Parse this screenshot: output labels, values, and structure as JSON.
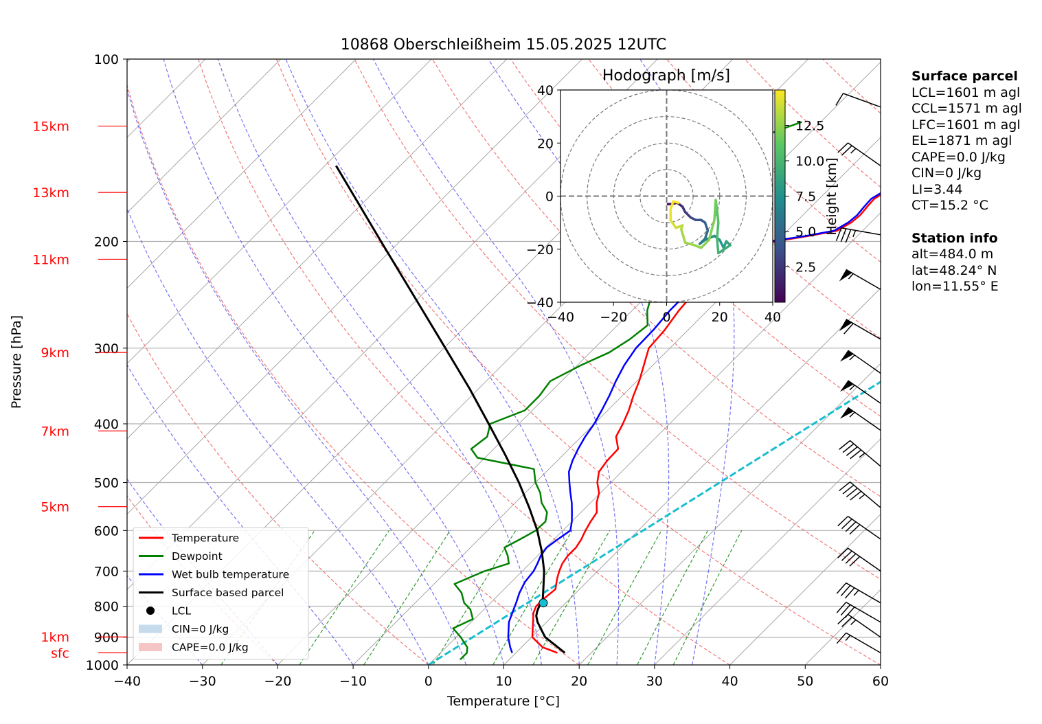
{
  "chart_data": {
    "type": "line",
    "title": "10868 Oberschleißheim 15.05.2025 12UTC",
    "xlabel": "Temperature [°C]",
    "ylabel": "Pressure [hPa]",
    "xlim": [
      -40,
      60
    ],
    "ylim": [
      1000,
      100
    ],
    "y_scale": "log",
    "x_ticks": [
      "−40",
      "−30",
      "−20",
      "−10",
      "0",
      "10",
      "20",
      "30",
      "40",
      "50",
      "60"
    ],
    "y_ticks": [
      "100",
      "200",
      "300",
      "400",
      "500",
      "600",
      "700",
      "800",
      "900",
      "1000"
    ],
    "height_labels": [
      {
        "label": "15km",
        "p": 129
      },
      {
        "label": "13km",
        "p": 166
      },
      {
        "label": "11km",
        "p": 214
      },
      {
        "label": "9km",
        "p": 305
      },
      {
        "label": "7km",
        "p": 411
      },
      {
        "label": "5km",
        "p": 548
      },
      {
        "label": "1km",
        "p": 899
      },
      {
        "label": "sfc",
        "p": 955
      }
    ],
    "legend_position": "lower-left",
    "legend": [
      {
        "label": "Temperature",
        "color": "#ff0000",
        "kind": "line"
      },
      {
        "label": "Dewpoint",
        "color": "#008000",
        "kind": "line"
      },
      {
        "label": "Wet bulb temperature",
        "color": "#0000ff",
        "kind": "line"
      },
      {
        "label": "Surface based parcel",
        "color": "#000000",
        "kind": "line"
      },
      {
        "label": "LCL",
        "color": "#000000",
        "kind": "dot"
      },
      {
        "label": "CIN=0 J/kg",
        "color": "#c6dbec",
        "kind": "patch"
      },
      {
        "label": "CAPE=0.0 J/kg",
        "color": "#f6c6c6",
        "kind": "patch"
      }
    ],
    "series": [
      {
        "name": "Temperature",
        "color": "#ff0000",
        "points": [
          [
            955,
            15.5
          ],
          [
            935,
            12.8
          ],
          [
            900,
            10.1
          ],
          [
            850,
            8.2
          ],
          [
            820,
            7.0
          ],
          [
            800,
            6.5
          ],
          [
            780,
            6.5
          ],
          [
            750,
            6.8
          ],
          [
            720,
            5.6
          ],
          [
            700,
            4.9
          ],
          [
            680,
            4.3
          ],
          [
            660,
            4.0
          ],
          [
            640,
            4.0
          ],
          [
            620,
            3.6
          ],
          [
            600,
            3.0
          ],
          [
            580,
            2.5
          ],
          [
            560,
            2.1
          ],
          [
            540,
            0.8
          ],
          [
            520,
            -0.2
          ],
          [
            500,
            -1.8
          ],
          [
            480,
            -3.0
          ],
          [
            460,
            -3.4
          ],
          [
            440,
            -3.5
          ],
          [
            420,
            -5.4
          ],
          [
            400,
            -6.2
          ],
          [
            380,
            -7.2
          ],
          [
            360,
            -8.5
          ],
          [
            340,
            -9.7
          ],
          [
            320,
            -11.2
          ],
          [
            300,
            -12.8
          ],
          [
            280,
            -13.1
          ],
          [
            260,
            -13.8
          ],
          [
            240,
            -14.2
          ],
          [
            225,
            -13.0
          ],
          [
            213,
            -12.0
          ],
          [
            205,
            -11.7
          ],
          [
            200,
            -10.2
          ],
          [
            196,
            -6.6
          ],
          [
            192,
            -3.4
          ],
          [
            186,
            -2.6
          ],
          [
            181,
            -2.4
          ],
          [
            175,
            -2.6
          ],
          [
            170,
            -2.7
          ],
          [
            165,
            -2.0
          ],
          [
            160,
            0.6
          ],
          [
            152,
            1.2
          ],
          [
            142,
            2.1
          ],
          [
            135,
            3.6
          ],
          [
            128,
            4.0
          ]
        ]
      },
      {
        "name": "Dewpoint",
        "color": "#008000",
        "points": [
          [
            980,
            3.5
          ],
          [
            955,
            3.5
          ],
          [
            935,
            2.8
          ],
          [
            900,
            0.6
          ],
          [
            870,
            -1.6
          ],
          [
            840,
            -0.2
          ],
          [
            810,
            -1.8
          ],
          [
            790,
            -3.5
          ],
          [
            760,
            -5.2
          ],
          [
            735,
            -7.3
          ],
          [
            700,
            -5.0
          ],
          [
            680,
            -2.8
          ],
          [
            660,
            -4.0
          ],
          [
            640,
            -5.5
          ],
          [
            620,
            -4.5
          ],
          [
            600,
            -3.6
          ],
          [
            580,
            -3.5
          ],
          [
            560,
            -4.5
          ],
          [
            540,
            -6.5
          ],
          [
            520,
            -8.0
          ],
          [
            500,
            -10.0
          ],
          [
            475,
            -12.0
          ],
          [
            455,
            -21.0
          ],
          [
            440,
            -23.0
          ],
          [
            420,
            -22.5
          ],
          [
            400,
            -23.8
          ],
          [
            380,
            -21.0
          ],
          [
            360,
            -21.0
          ],
          [
            340,
            -21.5
          ],
          [
            320,
            -19.5
          ],
          [
            305,
            -17.5
          ],
          [
            290,
            -16.5
          ],
          [
            275,
            -16.0
          ],
          [
            260,
            -18.0
          ],
          [
            245,
            -19.5
          ],
          [
            230,
            -21.5
          ],
          [
            215,
            -25.5
          ],
          [
            205,
            -26.5
          ],
          [
            198,
            -29.0
          ],
          [
            190,
            -31.5
          ],
          [
            180,
            -30.0
          ],
          [
            165,
            -29.0
          ],
          [
            150,
            -29.5
          ],
          [
            140,
            -28.0
          ],
          [
            130,
            -24.0
          ],
          [
            127,
            -22.5
          ]
        ]
      },
      {
        "name": "Wet bulb temperature",
        "color": "#0000ff",
        "points": [
          [
            955,
            9.5
          ],
          [
            935,
            8.5
          ],
          [
            900,
            6.9
          ],
          [
            850,
            5.0
          ],
          [
            820,
            4.2
          ],
          [
            790,
            3.4
          ],
          [
            760,
            2.5
          ],
          [
            730,
            1.8
          ],
          [
            700,
            1.5
          ],
          [
            680,
            1.0
          ],
          [
            660,
            0.4
          ],
          [
            640,
            0.1
          ],
          [
            620,
            0.5
          ],
          [
            600,
            1.0
          ],
          [
            580,
            0.0
          ],
          [
            560,
            -1.2
          ],
          [
            540,
            -2.5
          ],
          [
            520,
            -4.0
          ],
          [
            500,
            -5.5
          ],
          [
            480,
            -7.0
          ],
          [
            460,
            -8.0
          ],
          [
            440,
            -8.8
          ],
          [
            420,
            -9.5
          ],
          [
            400,
            -10.0
          ],
          [
            380,
            -10.8
          ],
          [
            360,
            -11.7
          ],
          [
            340,
            -12.8
          ],
          [
            320,
            -13.8
          ],
          [
            300,
            -14.5
          ],
          [
            280,
            -14.6
          ],
          [
            260,
            -15.0
          ],
          [
            240,
            -15.0
          ],
          [
            225,
            -13.6
          ],
          [
            213,
            -12.5
          ],
          [
            205,
            -12.3
          ],
          [
            200,
            -11.0
          ],
          [
            196,
            -7.0
          ],
          [
            192,
            -3.8
          ],
          [
            186,
            -3.0
          ],
          [
            181,
            -2.8
          ],
          [
            175,
            -3.0
          ],
          [
            170,
            -3.1
          ],
          [
            165,
            -2.4
          ],
          [
            160,
            0.3
          ],
          [
            152,
            0.8
          ],
          [
            142,
            1.7
          ],
          [
            135,
            3.1
          ],
          [
            128,
            3.6
          ]
        ]
      },
      {
        "name": "Surface based parcel",
        "color": "#000000",
        "points": [
          [
            955,
            16.5
          ],
          [
            900,
            11.8
          ],
          [
            850,
            8.8
          ],
          [
            830,
            7.8
          ],
          [
            815,
            7.3
          ],
          [
            800,
            6.9
          ],
          [
            785,
            6.7
          ],
          [
            750,
            5.2
          ],
          [
            700,
            2.9
          ],
          [
            650,
            0.0
          ],
          [
            600,
            -3.4
          ],
          [
            550,
            -7.5
          ],
          [
            500,
            -12.2
          ],
          [
            450,
            -17.7
          ],
          [
            400,
            -24.0
          ],
          [
            350,
            -31.2
          ],
          [
            300,
            -39.8
          ],
          [
            250,
            -50.0
          ],
          [
            200,
            -62.5
          ],
          [
            150,
            -78.5
          ]
        ]
      }
    ],
    "lcl": {
      "p": 790,
      "t": 7.0
    },
    "dry_adiabats_theta_k": [
      213.15,
      233.15,
      253.15,
      273.15,
      293.15,
      313.15,
      333.15,
      353.15,
      373.15,
      393.15,
      413.15,
      433.15,
      453.15,
      473.15,
      493.15,
      513.15
    ],
    "moist_adiabats_c": [
      -30,
      -20,
      -10,
      0,
      5,
      10,
      15,
      20,
      25,
      30,
      35
    ],
    "mixing_ratio_lines_gkg": [
      0.4,
      1,
      2,
      4,
      7,
      10,
      16,
      24,
      32
    ],
    "isotherm_step_c": 10,
    "wind_barbs": [
      {
        "p": 955,
        "speed_kt": 15,
        "dir_deg": 300
      },
      {
        "p": 900,
        "speed_kt": 25,
        "dir_deg": 305
      },
      {
        "p": 850,
        "speed_kt": 30,
        "dir_deg": 300
      },
      {
        "p": 790,
        "speed_kt": 35,
        "dir_deg": 300
      },
      {
        "p": 700,
        "speed_kt": 40,
        "dir_deg": 305
      },
      {
        "p": 620,
        "speed_kt": 40,
        "dir_deg": 305
      },
      {
        "p": 550,
        "speed_kt": 45,
        "dir_deg": 310
      },
      {
        "p": 470,
        "speed_kt": 45,
        "dir_deg": 310
      },
      {
        "p": 410,
        "speed_kt": 55,
        "dir_deg": 305
      },
      {
        "p": 370,
        "speed_kt": 55,
        "dir_deg": 305
      },
      {
        "p": 330,
        "speed_kt": 55,
        "dir_deg": 305
      },
      {
        "p": 290,
        "speed_kt": 60,
        "dir_deg": 300
      },
      {
        "p": 240,
        "speed_kt": 55,
        "dir_deg": 300
      },
      {
        "p": 195,
        "speed_kt": 35,
        "dir_deg": 280
      },
      {
        "p": 150,
        "speed_kt": 25,
        "dir_deg": 305
      },
      {
        "p": 120,
        "speed_kt": 10,
        "dir_deg": 290
      }
    ],
    "hodograph": {
      "title": "Hodograph [m/s]",
      "xlim": [
        -40,
        40
      ],
      "ylim": [
        -40,
        40
      ],
      "x_ticks": [
        "−40",
        "−20",
        "0",
        "20",
        "40"
      ],
      "y_ticks": [
        "−40",
        "−20",
        "0",
        "20",
        "40"
      ],
      "ring_radii": [
        10,
        20,
        30,
        40
      ],
      "colorbar_label": "Height [km]",
      "colorbar_ticks": [
        "2.5",
        "5.0",
        "7.5",
        "10.0",
        "12.5"
      ],
      "colorbar_range_km": [
        0,
        15
      ],
      "points": [
        [
          0.5,
          -3.0,
          0.5
        ],
        [
          2.0,
          -3.0,
          1.0
        ],
        [
          4.0,
          -2.5,
          1.5
        ],
        [
          6.0,
          -4.0,
          2.0
        ],
        [
          7.0,
          -6.0,
          2.5
        ],
        [
          9.0,
          -8.0,
          3.0
        ],
        [
          11.0,
          -9.0,
          3.5
        ],
        [
          13.0,
          -9.0,
          4.0
        ],
        [
          14.5,
          -10.0,
          4.5
        ],
        [
          15.5,
          -13.0,
          5.0
        ],
        [
          14.5,
          -16.0,
          5.5
        ],
        [
          12.5,
          -18.0,
          6.0
        ],
        [
          14.5,
          -16.5,
          6.5
        ],
        [
          18.0,
          -15.0,
          7.0
        ],
        [
          20.0,
          -16.5,
          7.5
        ],
        [
          21.5,
          -19.5,
          8.0
        ],
        [
          22.5,
          -17.0,
          8.5
        ],
        [
          24.0,
          -18.5,
          9.0
        ],
        [
          19.5,
          -21.5,
          9.5
        ],
        [
          19.0,
          -16.0,
          10.0
        ],
        [
          19.5,
          -10.0,
          10.5
        ],
        [
          19.0,
          -5.0,
          11.0
        ],
        [
          18.5,
          -1.5,
          11.5
        ],
        [
          18.0,
          -9.0,
          12.0
        ],
        [
          16.0,
          -16.5,
          12.2
        ],
        [
          13.0,
          -19.5,
          12.4
        ],
        [
          10.5,
          -18.5,
          12.6
        ],
        [
          7.0,
          -17.5,
          12.8
        ],
        [
          5.5,
          -12.5,
          13.0
        ],
        [
          6.0,
          -11.0,
          13.4
        ],
        [
          3.5,
          -12.0,
          13.8
        ],
        [
          1.5,
          -9.0,
          14.2
        ],
        [
          1.5,
          -5.0,
          14.6
        ],
        [
          2.5,
          -2.0,
          15.0
        ],
        [
          4.5,
          -2.5,
          15.3
        ]
      ]
    }
  },
  "panel": {
    "surface_header": "Surface parcel",
    "surface_lines": [
      "LCL=1601 m agl",
      "CCL=1571 m agl",
      "LFC=1601 m agl",
      "EL=1871 m agl",
      "CAPE=0.0 J/kg",
      "CIN=0 J/kg",
      "LI=3.44",
      "CT=15.2 °C"
    ],
    "station_header": "Station info",
    "station_lines": [
      "alt=484.0 m",
      "lat=48.24° N",
      "lon=11.55° E"
    ]
  }
}
